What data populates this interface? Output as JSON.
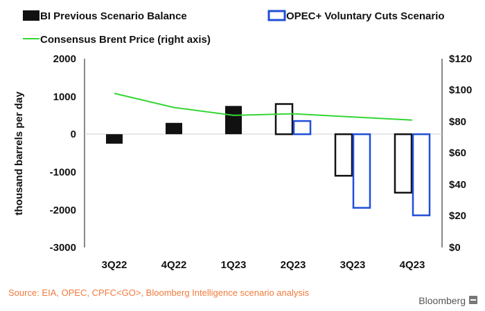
{
  "chart_data": {
    "type": "bar",
    "categories": [
      "3Q22",
      "4Q22",
      "1Q23",
      "2Q23",
      "3Q23",
      "4Q23"
    ],
    "series": [
      {
        "name": "BI Previous Scenario Balance",
        "style": "filled-black-then-outline",
        "values": [
          -250,
          300,
          750,
          800,
          -1100,
          -1550
        ]
      },
      {
        "name": "OPEC+ Voluntary Cuts Scenario",
        "style": "outline-blue",
        "values": [
          null,
          null,
          null,
          350,
          -1950,
          -2150
        ]
      }
    ],
    "line_series": {
      "name": "Consensus Brent Price (right axis)",
      "axis": "right",
      "values": [
        98,
        89,
        84,
        85,
        83,
        81
      ]
    },
    "ylabel": "thousand barrels per day",
    "ylim": [
      -3000,
      2000
    ],
    "yticks": [
      "2000",
      "1000",
      "0",
      "-1000",
      "-2000",
      "-3000"
    ],
    "y2lim": [
      0,
      120
    ],
    "y2ticks": [
      "$120",
      "$100",
      "$80",
      "$60",
      "$40",
      "$20",
      "$0"
    ],
    "grid": false,
    "legend_position": "top",
    "colors": {
      "series1": "#111111",
      "series2": "#1f4ed8",
      "line": "#33d633",
      "source": "#f07a3c"
    }
  },
  "footer": {
    "source": "Source: EIA, OPEC, CPFC<GO>, Bloomberg Intelligence scenario analysis",
    "brand": "Bloomberg"
  }
}
